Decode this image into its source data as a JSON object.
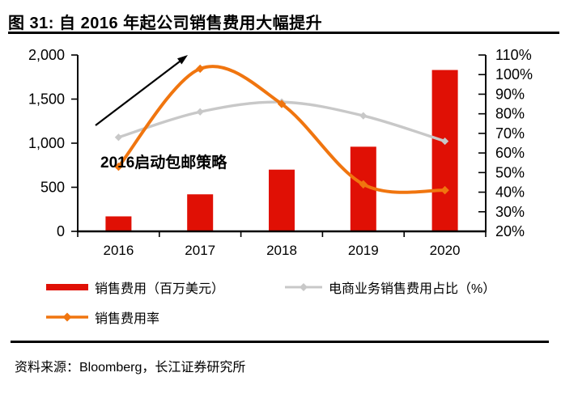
{
  "figure": {
    "title": "图 31: 自 2016 年起公司销售费用大幅提升",
    "source": "资料来源：Bloomberg，长江证券研究所"
  },
  "chart_data": {
    "type": "combo",
    "categories": [
      "2016",
      "2017",
      "2018",
      "2019",
      "2020"
    ],
    "series": [
      {
        "name": "销售费用（百万美元）",
        "type": "bar",
        "axis": "left",
        "color": "#e01005",
        "values": [
          170,
          420,
          700,
          960,
          1830
        ]
      },
      {
        "name": "电商业务销售费用占比（%）",
        "type": "line",
        "axis": "right",
        "color": "#c8c8c8",
        "values": [
          68,
          81,
          86,
          79,
          66
        ]
      },
      {
        "name": "销售费用率",
        "type": "line",
        "axis": "right",
        "color": "#f0750f",
        "values": [
          53,
          103,
          85,
          44,
          41
        ]
      }
    ],
    "left_axis": {
      "min": 0,
      "max": 2000,
      "tick_labels": [
        "0",
        "500",
        "1,000",
        "1,500",
        "2,000"
      ]
    },
    "right_axis": {
      "min": 20,
      "max": 110,
      "tick_labels": [
        "20%",
        "30%",
        "40%",
        "50%",
        "60%",
        "70%",
        "80%",
        "90%",
        "100%",
        "110%"
      ]
    },
    "annotation": {
      "text": "2016启动包邮策略",
      "arrow": true
    },
    "legend_position": "bottom",
    "grid": false,
    "axis_color": "#000000"
  }
}
